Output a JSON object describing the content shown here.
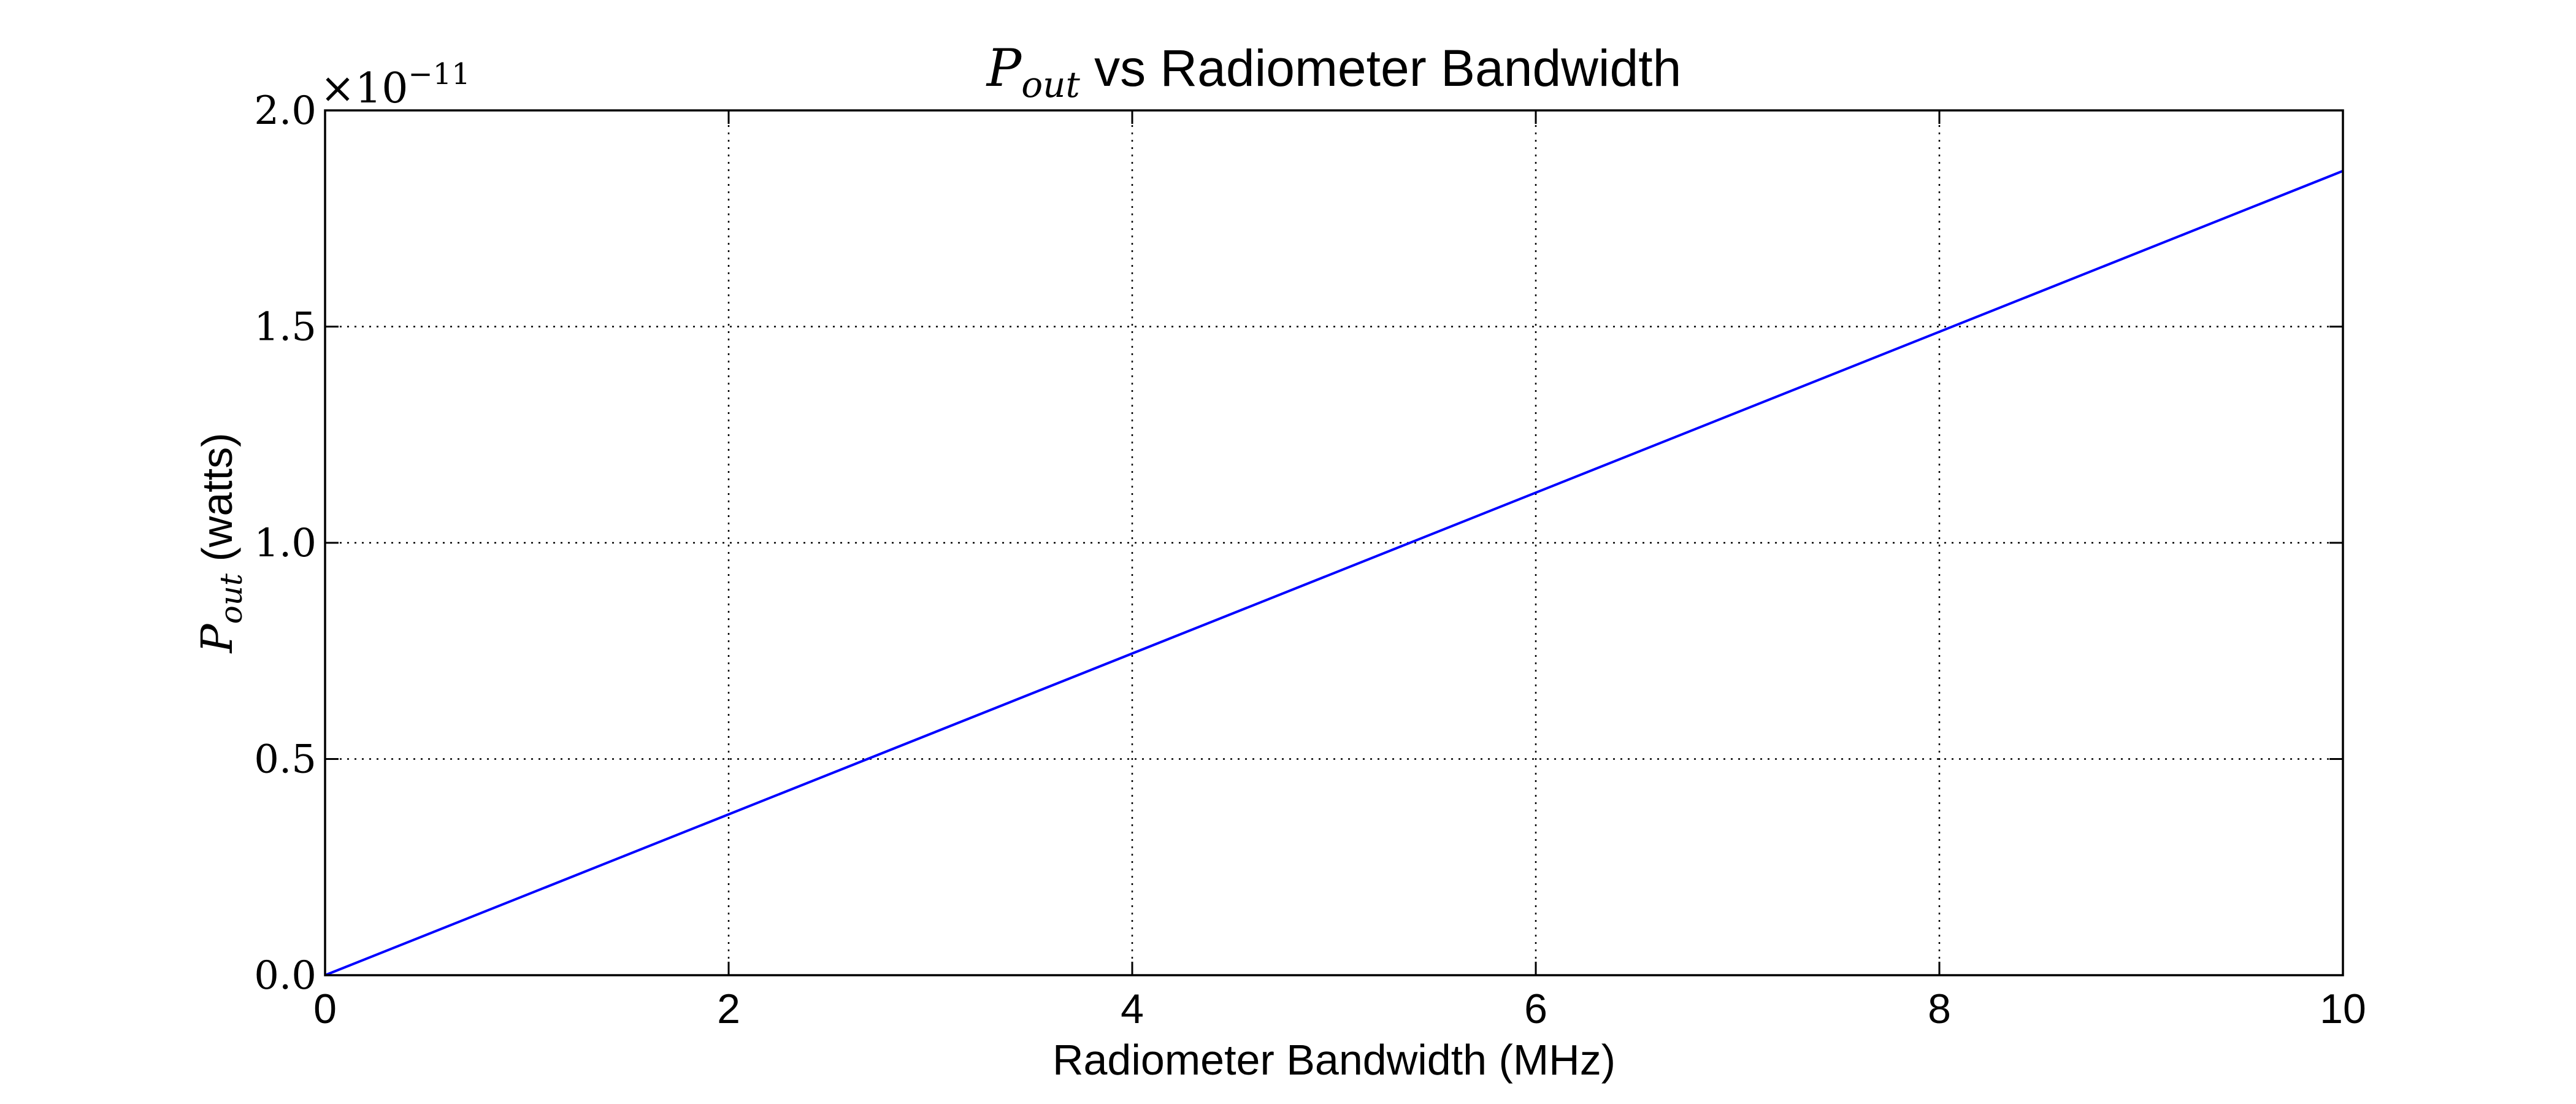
{
  "chart_data": {
    "type": "line",
    "title": {
      "math_symbol": "P",
      "math_subscript": "out",
      "text": " vs Radiometer Bandwidth"
    },
    "xlabel": "Radiometer Bandwidth (MHz)",
    "ylabel": {
      "math_symbol": "P",
      "math_subscript": "out",
      "text": " (watts)"
    },
    "xlim": [
      0,
      10
    ],
    "ylim": [
      0,
      2e-11
    ],
    "x_ticks": [
      {
        "value": 0,
        "label": "0"
      },
      {
        "value": 2,
        "label": "2"
      },
      {
        "value": 4,
        "label": "4"
      },
      {
        "value": 6,
        "label": "6"
      },
      {
        "value": 8,
        "label": "8"
      },
      {
        "value": 10,
        "label": "10"
      }
    ],
    "y_ticks": [
      {
        "value": 0.0,
        "label": "0.0"
      },
      {
        "value": 5e-12,
        "label": "0.5"
      },
      {
        "value": 1e-11,
        "label": "1.0"
      },
      {
        "value": 1.5e-11,
        "label": "1.5"
      },
      {
        "value": 2e-11,
        "label": "2.0"
      }
    ],
    "y_offset_label": {
      "base": "×10",
      "exponent": "−11"
    },
    "grid": true,
    "series": [
      {
        "color": "#0000ff",
        "x": [
          0,
          10
        ],
        "y": [
          0,
          1.86e-11
        ]
      }
    ]
  }
}
